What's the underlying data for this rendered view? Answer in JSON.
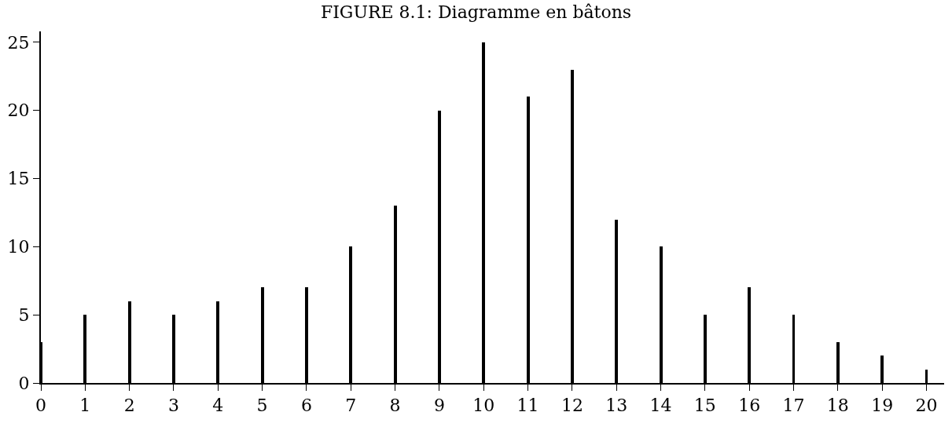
{
  "chart_data": {
    "type": "bar",
    "title": "FIGURE 8.1: Diagramme en bâtons",
    "x": [
      0,
      1,
      2,
      3,
      4,
      5,
      6,
      7,
      8,
      9,
      10,
      11,
      12,
      13,
      14,
      15,
      16,
      17,
      18,
      19,
      20
    ],
    "values": [
      3,
      5,
      6,
      5,
      6,
      7,
      7,
      10,
      13,
      20,
      25,
      21,
      23,
      12,
      10,
      5,
      7,
      5,
      3,
      2,
      1
    ],
    "color": "#000000",
    "xlim": [
      0,
      20.4
    ],
    "xticks": [
      0,
      1,
      2,
      3,
      4,
      5,
      6,
      7,
      8,
      9,
      10,
      11,
      12,
      13,
      14,
      15,
      16,
      17,
      18,
      19,
      20
    ],
    "ylim": [
      0,
      25.8
    ],
    "yticks": [
      0,
      5,
      10,
      15,
      20,
      25
    ],
    "grid": false,
    "legend": false
  }
}
